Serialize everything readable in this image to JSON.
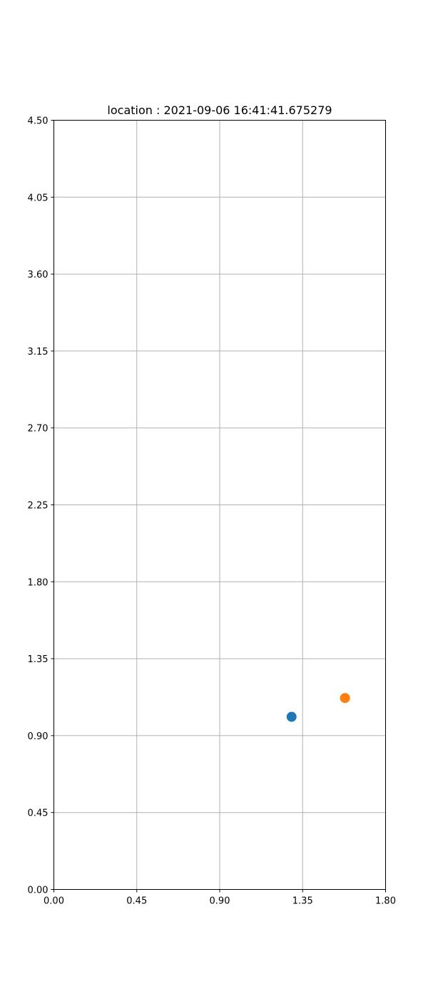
{
  "chart_data": {
    "type": "scatter",
    "title": "location : 2021-09-06 16:41:41.675279",
    "xlabel": "",
    "ylabel": "",
    "xlim": [
      0,
      1.8
    ],
    "ylim": [
      0,
      4.5
    ],
    "grid": true,
    "x_ticks": [
      "0.00",
      "0.45",
      "0.90",
      "1.35",
      "1.80"
    ],
    "y_ticks": [
      "0.00",
      "0.45",
      "0.90",
      "1.35",
      "1.80",
      "2.25",
      "2.70",
      "3.15",
      "3.60",
      "4.05",
      "4.50"
    ],
    "series": [
      {
        "x": [
          1.29
        ],
        "y": [
          1.01
        ],
        "color": "#1f77b4"
      },
      {
        "x": [
          1.58
        ],
        "y": [
          1.12
        ],
        "color": "#ff7f0e"
      }
    ]
  }
}
